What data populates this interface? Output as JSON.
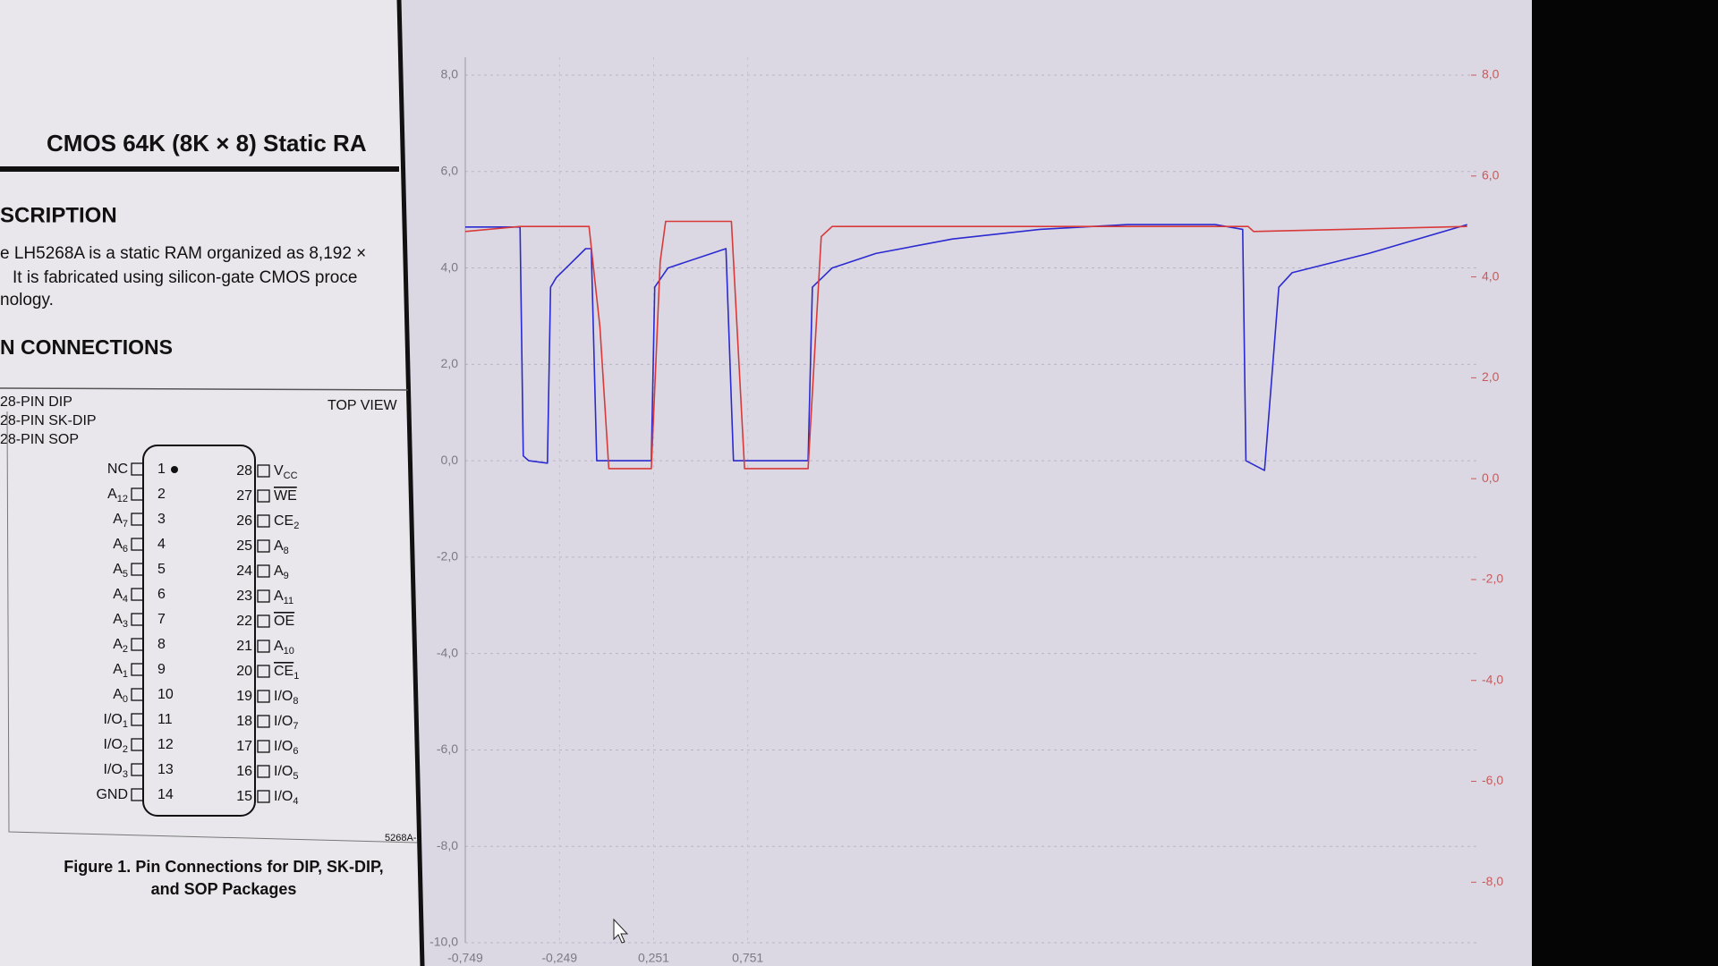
{
  "document": {
    "title": "CMOS 64K (8K × 8) Static RA",
    "section1": "SCRIPTION",
    "description": [
      "e LH5268A is a static RAM organized as 8,192 ×",
      "It is fabricated using silicon-gate CMOS proce",
      "nology."
    ],
    "section2": "N CONNECTIONS",
    "packages": [
      "28-PIN DIP",
      "28-PIN SK-DIP",
      "28-PIN SOP"
    ],
    "view": "TOP VIEW",
    "pins_left": [
      {
        "num": "1",
        "name": "NC"
      },
      {
        "num": "2",
        "name": "A",
        "sub": "12"
      },
      {
        "num": "3",
        "name": "A",
        "sub": "7"
      },
      {
        "num": "4",
        "name": "A",
        "sub": "6"
      },
      {
        "num": "5",
        "name": "A",
        "sub": "5"
      },
      {
        "num": "6",
        "name": "A",
        "sub": "4"
      },
      {
        "num": "7",
        "name": "A",
        "sub": "3"
      },
      {
        "num": "8",
        "name": "A",
        "sub": "2"
      },
      {
        "num": "9",
        "name": "A",
        "sub": "1"
      },
      {
        "num": "10",
        "name": "A",
        "sub": "0"
      },
      {
        "num": "11",
        "name": "I/O",
        "sub": "1"
      },
      {
        "num": "12",
        "name": "I/O",
        "sub": "2"
      },
      {
        "num": "13",
        "name": "I/O",
        "sub": "3"
      },
      {
        "num": "14",
        "name": "GND"
      }
    ],
    "pins_right": [
      {
        "num": "28",
        "name": "V",
        "sub": "CC"
      },
      {
        "num": "27",
        "name": "WE",
        "bar": true
      },
      {
        "num": "26",
        "name": "CE",
        "sub": "2"
      },
      {
        "num": "25",
        "name": "A",
        "sub": "8"
      },
      {
        "num": "24",
        "name": "A",
        "sub": "9"
      },
      {
        "num": "23",
        "name": "A",
        "sub": "11"
      },
      {
        "num": "22",
        "name": "OE",
        "bar": true
      },
      {
        "num": "21",
        "name": "A",
        "sub": "10"
      },
      {
        "num": "20",
        "name": "CE",
        "sub": "1",
        "bar": true
      },
      {
        "num": "19",
        "name": "I/O",
        "sub": "8"
      },
      {
        "num": "18",
        "name": "I/O",
        "sub": "7"
      },
      {
        "num": "17",
        "name": "I/O",
        "sub": "6"
      },
      {
        "num": "16",
        "name": "I/O",
        "sub": "5"
      },
      {
        "num": "15",
        "name": "I/O",
        "sub": "4"
      }
    ],
    "drawing_id": "5268A-",
    "caption": [
      "Figure 1.  Pin Connections for DIP, SK-DIP,",
      "and SOP Packages"
    ]
  },
  "chart_data": {
    "type": "line",
    "xlim": [
      -0.749,
      4.62
    ],
    "xticks": [
      {
        "value": -0.749,
        "label": "-0,749"
      },
      {
        "value": -0.249,
        "label": "-0,249"
      },
      {
        "value": 0.251,
        "label": "0,251"
      },
      {
        "value": 0.751,
        "label": "0,751"
      }
    ],
    "ylim": [
      -10,
      8
    ],
    "yticks": [
      {
        "value": 8,
        "label": "8,0"
      },
      {
        "value": 6,
        "label": "6,0"
      },
      {
        "value": 4,
        "label": "4,0"
      },
      {
        "value": 2,
        "label": "2,0"
      },
      {
        "value": 0,
        "label": "0,0"
      },
      {
        "value": -2,
        "label": "-2,0"
      },
      {
        "value": -4,
        "label": "-4,0"
      },
      {
        "value": -6,
        "label": "-6,0"
      },
      {
        "value": -8,
        "label": "-8,0"
      },
      {
        "value": -10,
        "label": "-10,0"
      }
    ],
    "y2lim": [
      -9.2,
      8
    ],
    "y2ticks": [
      {
        "value": 8,
        "label": "8,0"
      },
      {
        "value": 6,
        "label": "6,0"
      },
      {
        "value": 4,
        "label": "4,0"
      },
      {
        "value": 2,
        "label": "2,0"
      },
      {
        "value": 0,
        "label": "0,0"
      },
      {
        "value": -2,
        "label": "-2,0"
      },
      {
        "value": -4,
        "label": "-4,0"
      },
      {
        "value": -6,
        "label": "-6,0"
      },
      {
        "value": -8,
        "label": "-8,0"
      }
    ],
    "grid": true,
    "series": [
      {
        "color": "#2a2ad0",
        "axis": "y",
        "x": [
          -0.749,
          -0.458,
          -0.441,
          -0.412,
          -0.313,
          -0.296,
          -0.266,
          -0.11,
          -0.08,
          -0.051,
          0.239,
          0.257,
          0.327,
          0.635,
          0.675,
          1.071,
          1.094,
          1.199,
          1.431,
          1.838,
          2.303,
          2.768,
          3.233,
          3.379,
          3.396,
          3.495,
          3.571,
          3.641,
          4.048,
          4.571
        ],
        "values": [
          4.85,
          4.85,
          0.1,
          0.0,
          -0.05,
          3.6,
          3.8,
          4.4,
          4.4,
          0.0,
          0.0,
          3.6,
          4.0,
          4.4,
          0.0,
          0.0,
          3.6,
          4.0,
          4.3,
          4.6,
          4.8,
          4.9,
          4.9,
          4.8,
          0.0,
          -0.2,
          3.6,
          3.9,
          4.3,
          4.9
        ]
      },
      {
        "color": "#d83a3a",
        "axis": "y2",
        "x": [
          -0.749,
          -0.458,
          -0.092,
          -0.034,
          0.013,
          0.239,
          0.286,
          0.315,
          0.664,
          0.734,
          1.071,
          1.141,
          1.199,
          3.408,
          3.437,
          4.571
        ],
        "values": [
          4.9,
          5.0,
          5.0,
          3.0,
          0.2,
          0.2,
          4.3,
          5.1,
          5.1,
          0.2,
          0.2,
          4.8,
          5.0,
          5.0,
          4.9,
          5.0
        ]
      }
    ]
  }
}
